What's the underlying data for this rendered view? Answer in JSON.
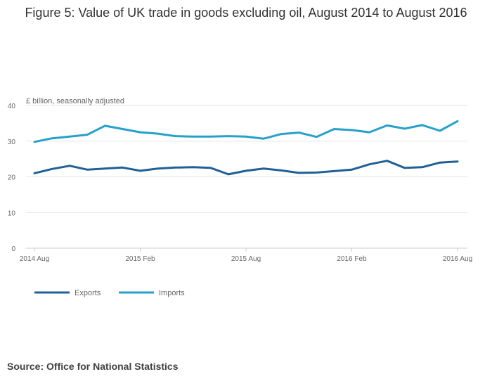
{
  "title": "Figure 5: Value of UK trade in goods excluding oil, August 2014 to August 2016",
  "source": "Source: Office for National Statistics",
  "chart_data": {
    "type": "line",
    "title": "Figure 5: Value of UK trade in goods excluding oil, August 2014 to August 2016",
    "ylabel": "£ billion, seasonally adjusted",
    "xlabel": "",
    "ylim": [
      0,
      40
    ],
    "yticks": [
      0,
      10,
      20,
      30,
      40
    ],
    "x": [
      "2014 Aug",
      "2014 Sep",
      "2014 Oct",
      "2014 Nov",
      "2014 Dec",
      "2015 Jan",
      "2015 Feb",
      "2015 Mar",
      "2015 Apr",
      "2015 May",
      "2015 Jun",
      "2015 Jul",
      "2015 Aug",
      "2015 Sep",
      "2015 Oct",
      "2015 Nov",
      "2015 Dec",
      "2016 Jan",
      "2016 Feb",
      "2016 Mar",
      "2016 Apr",
      "2016 May",
      "2016 Jun",
      "2016 Jul",
      "2016 Aug"
    ],
    "xtick_labels": [
      "2014 Aug",
      "2015 Feb",
      "2015 Aug",
      "2016 Feb",
      "2016 Aug"
    ],
    "xtick_indices": [
      0,
      6,
      12,
      18,
      24
    ],
    "grid": "horizontal",
    "legend_position": "bottom-left",
    "series": [
      {
        "name": "Exports",
        "color": "#206095",
        "values": [
          21.0,
          22.2,
          23.1,
          22.0,
          22.3,
          22.6,
          21.7,
          22.3,
          22.6,
          22.7,
          22.5,
          20.7,
          21.7,
          22.3,
          21.8,
          21.1,
          21.2,
          21.6,
          22.0,
          23.5,
          24.5,
          22.5,
          22.7,
          24.0,
          24.3
        ]
      },
      {
        "name": "Imports",
        "color": "#27a0cc",
        "values": [
          29.8,
          30.8,
          31.3,
          31.8,
          34.3,
          33.4,
          32.5,
          32.1,
          31.4,
          31.3,
          31.3,
          31.4,
          31.3,
          30.7,
          32.0,
          32.4,
          31.2,
          33.4,
          33.1,
          32.5,
          34.4,
          33.5,
          34.5,
          32.9,
          35.6
        ]
      }
    ]
  }
}
